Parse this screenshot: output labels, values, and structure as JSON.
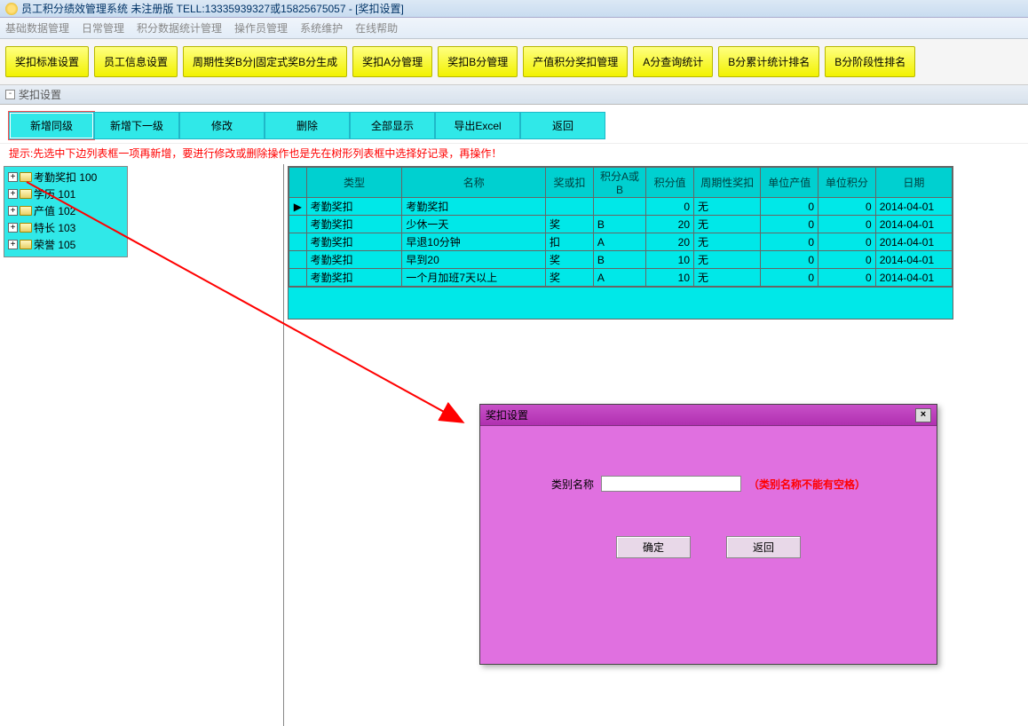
{
  "window": {
    "title": "员工积分绩效管理系统 未注册版 TELL:13335939327或15825675057 - [奖扣设置]"
  },
  "menubar": {
    "items": [
      "基础数据管理",
      "日常管理",
      "积分数据统计管理",
      "操作员管理",
      "系统维护",
      "在线帮助"
    ]
  },
  "topTabs": {
    "items": [
      "奖扣标准设置",
      "员工信息设置",
      "周期性奖B分|固定式奖B分生成",
      "奖扣A分管理",
      "奖扣B分管理",
      "产值积分奖扣管理",
      "A分查询统计",
      "B分累计统计排名",
      "B分阶段性排名"
    ]
  },
  "subTitle": "奖扣设置",
  "toolbar": {
    "items": [
      "新增同级",
      "新增下一级",
      "修改",
      "删除",
      "全部显示",
      "导出Excel",
      "返回"
    ],
    "activeIndex": 0
  },
  "hint": "提示:先选中下边列表框一项再新增，要进行修改或删除操作也是先在树形列表框中选择好记录，再操作！",
  "tree": {
    "nodes": [
      {
        "label": "考勤奖扣 100"
      },
      {
        "label": "学历 101"
      },
      {
        "label": "产值 102"
      },
      {
        "label": "特长 103"
      },
      {
        "label": "荣誉 105"
      }
    ]
  },
  "grid": {
    "columns": [
      "类型",
      "名称",
      "奖或扣",
      "积分A或B",
      "积分值",
      "周期性奖扣",
      "单位产值",
      "单位积分",
      "日期"
    ],
    "rows": [
      {
        "type": "考勤奖扣",
        "name": "考勤奖扣",
        "jk": "",
        "ab": "",
        "score": "0",
        "cycle": "无",
        "unitv": "0",
        "unitp": "0",
        "date": "2014-04-01",
        "ptr": true
      },
      {
        "type": "考勤奖扣",
        "name": "少休一天",
        "jk": "奖",
        "ab": "B",
        "score": "20",
        "cycle": "无",
        "unitv": "0",
        "unitp": "0",
        "date": "2014-04-01"
      },
      {
        "type": "考勤奖扣",
        "name": "早退10分钟",
        "jk": "扣",
        "ab": "A",
        "score": "20",
        "cycle": "无",
        "unitv": "0",
        "unitp": "0",
        "date": "2014-04-01"
      },
      {
        "type": "考勤奖扣",
        "name": "早到20",
        "jk": "奖",
        "ab": "B",
        "score": "10",
        "cycle": "无",
        "unitv": "0",
        "unitp": "0",
        "date": "2014-04-01"
      },
      {
        "type": "考勤奖扣",
        "name": "一个月加班7天以上",
        "jk": "奖",
        "ab": "A",
        "score": "10",
        "cycle": "无",
        "unitv": "0",
        "unitp": "0",
        "date": "2014-04-01"
      }
    ]
  },
  "dialog": {
    "title": "奖扣设置",
    "fieldLabel": "类别名称",
    "warn": "（类别名称不能有空格）",
    "ok": "确定",
    "back": "返回"
  },
  "colors": {
    "yellowTab": "#f2f200",
    "cyan": "#00e8e8",
    "toolbarCyan": "#30e8e8",
    "magenta": "#e070e0",
    "red": "#ff0000"
  }
}
